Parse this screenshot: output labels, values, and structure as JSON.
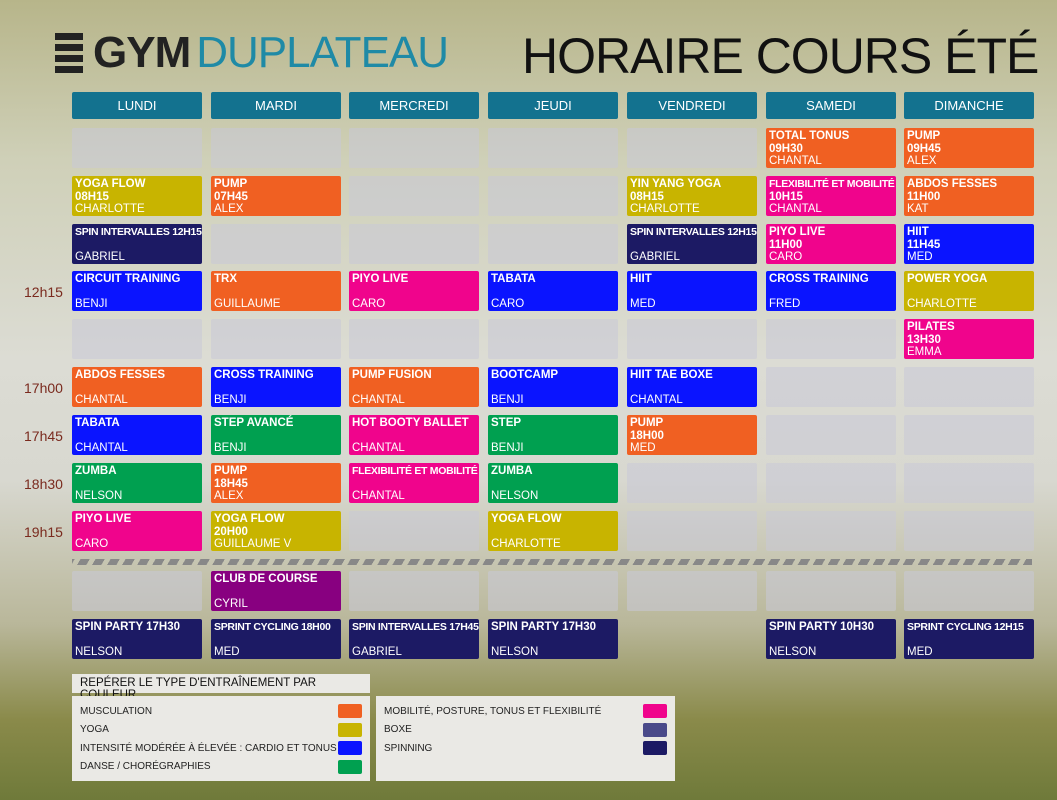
{
  "header": {
    "brand_bold": "GYM",
    "brand_light": "DUPLATEAU",
    "title": "HORAIRE COURS ÉTÉ"
  },
  "days": [
    "LUNDI",
    "MARDI",
    "MERCREDI",
    "JEUDI",
    "VENDREDI",
    "SAMEDI",
    "DIMANCHE"
  ],
  "colors": {
    "musculation": "#f06022",
    "yoga": "#c8b400",
    "cardio": "#0a14ff",
    "danse": "#00a050",
    "mobilite": "#f0048c",
    "boxe": "#4a4a8a",
    "spinning": "#1c1a64",
    "course": "#880080",
    "header": "#13728f"
  },
  "rows": [
    {
      "time": "",
      "cells": [
        null,
        null,
        null,
        null,
        null,
        {
          "name": "TOTAL TONUS",
          "time": "09H30",
          "instructor": "CHANTAL",
          "type": "musculation"
        },
        {
          "name": "PUMP",
          "time": "09H45",
          "instructor": "ALEX",
          "type": "musculation"
        }
      ]
    },
    {
      "time": "",
      "cells": [
        {
          "name": "YOGA FLOW",
          "time": "08H15",
          "instructor": "CHARLOTTE",
          "type": "yoga"
        },
        {
          "name": "PUMP",
          "time": "07H45",
          "instructor": "ALEX",
          "type": "musculation"
        },
        null,
        null,
        {
          "name": "YIN YANG YOGA",
          "time": "08H15",
          "instructor": "CHARLOTTE",
          "type": "yoga"
        },
        {
          "name": "FLEXIBILITÉ ET MOBILITÉ",
          "time": "10H15",
          "instructor": "CHANTAL",
          "type": "mobilite"
        },
        {
          "name": "ABDOS FESSES",
          "time": "11H00",
          "instructor": "KAT",
          "type": "musculation"
        }
      ]
    },
    {
      "time": "",
      "cells": [
        {
          "name": "SPIN INTERVALLES 12H15",
          "time": "",
          "instructor": "GABRIEL",
          "type": "spinning"
        },
        null,
        null,
        null,
        {
          "name": "SPIN INTERVALLES 12H15",
          "time": "",
          "instructor": "GABRIEL",
          "type": "spinning"
        },
        {
          "name": "PIYO LIVE",
          "time": "11H00",
          "instructor": "CARO",
          "type": "mobilite"
        },
        {
          "name": "HIIT",
          "time": "11H45",
          "instructor": "MED",
          "type": "cardio"
        }
      ]
    },
    {
      "time": "12h15",
      "cells": [
        {
          "name": "CIRCUIT TRAINING",
          "time": "",
          "instructor": "BENJI",
          "type": "cardio"
        },
        {
          "name": "TRX",
          "time": "",
          "instructor": "GUILLAUME",
          "type": "musculation"
        },
        {
          "name": "PIYO LIVE",
          "time": "",
          "instructor": "CARO",
          "type": "mobilite"
        },
        {
          "name": "TABATA",
          "time": "",
          "instructor": "CARO",
          "type": "cardio"
        },
        {
          "name": "HIIT",
          "time": "",
          "instructor": "MED",
          "type": "cardio"
        },
        {
          "name": "CROSS TRAINING",
          "time": "",
          "instructor": "FRED",
          "type": "cardio"
        },
        {
          "name": "POWER YOGA",
          "time": "",
          "instructor": "CHARLOTTE",
          "type": "yoga"
        }
      ]
    },
    {
      "time": "",
      "cells": [
        null,
        null,
        null,
        null,
        null,
        null,
        {
          "name": "PILATES",
          "time": "13H30",
          "instructor": "EMMA",
          "type": "mobilite"
        }
      ]
    },
    {
      "time": "17h00",
      "cells": [
        {
          "name": "ABDOS FESSES",
          "time": "",
          "instructor": "CHANTAL",
          "type": "musculation"
        },
        {
          "name": "CROSS TRAINING",
          "time": "",
          "instructor": "BENJI",
          "type": "cardio"
        },
        {
          "name": "PUMP FUSION",
          "time": "",
          "instructor": "CHANTAL",
          "type": "musculation"
        },
        {
          "name": "BOOTCAMP",
          "time": "",
          "instructor": "BENJI",
          "type": "cardio"
        },
        {
          "name": "HIIT TAE BOXE",
          "time": "",
          "instructor": "CHANTAL",
          "type": "cardio"
        },
        null,
        null
      ]
    },
    {
      "time": "17h45",
      "cells": [
        {
          "name": "TABATA",
          "time": "",
          "instructor": "CHANTAL",
          "type": "cardio"
        },
        {
          "name": "STEP AVANCÉ",
          "time": "",
          "instructor": "BENJI",
          "type": "danse"
        },
        {
          "name": "HOT BOOTY BALLET",
          "time": "",
          "instructor": "CHANTAL",
          "type": "mobilite"
        },
        {
          "name": "STEP",
          "time": "",
          "instructor": "BENJI",
          "type": "danse"
        },
        {
          "name": "PUMP",
          "time": "18H00",
          "instructor": "MED",
          "type": "musculation"
        },
        null,
        null
      ]
    },
    {
      "time": "18h30",
      "cells": [
        {
          "name": "ZUMBA",
          "time": "",
          "instructor": "NELSON",
          "type": "danse"
        },
        {
          "name": "PUMP",
          "time": "18H45",
          "instructor": "ALEX",
          "type": "musculation"
        },
        {
          "name": "FLEXIBILITÉ ET MOBILITÉ",
          "time": "",
          "instructor": "CHANTAL",
          "type": "mobilite"
        },
        {
          "name": "ZUMBA",
          "time": "",
          "instructor": "NELSON",
          "type": "danse"
        },
        null,
        null,
        null
      ]
    },
    {
      "time": "19h15",
      "cells": [
        {
          "name": "PIYO LIVE",
          "time": "",
          "instructor": "CARO",
          "type": "mobilite"
        },
        {
          "name": "YOGA FLOW",
          "time": "20H00",
          "instructor": "GUILLAUME V",
          "type": "yoga"
        },
        null,
        {
          "name": "YOGA FLOW",
          "time": "",
          "instructor": "CHARLOTTE",
          "type": "yoga"
        },
        null,
        null,
        null
      ]
    },
    {
      "time": "",
      "cells": [
        null,
        {
          "name": "CLUB DE COURSE",
          "time": "",
          "instructor": "CYRIL",
          "type": "course"
        },
        null,
        null,
        null,
        null,
        null
      ]
    },
    {
      "time": "",
      "cells": [
        {
          "name": "SPIN PARTY 17H30",
          "time": "",
          "instructor": "NELSON",
          "type": "spinning"
        },
        {
          "name": "SPRINT CYCLING 18H00",
          "time": "",
          "instructor": "MED",
          "type": "spinning"
        },
        {
          "name": "SPIN INTERVALLES 17H45",
          "time": "",
          "instructor": "GABRIEL",
          "type": "spinning"
        },
        {
          "name": "SPIN PARTY 17H30",
          "time": "",
          "instructor": "NELSON",
          "type": "spinning"
        },
        "none",
        {
          "name": "SPIN PARTY 10H30",
          "time": "",
          "instructor": "NELSON",
          "type": "spinning"
        },
        {
          "name": "SPRINT CYCLING 12H15",
          "time": "",
          "instructor": "MED",
          "type": "spinning"
        }
      ]
    }
  ],
  "legend": {
    "title": "REPÉRER LE TYPE D'ENTRAÎNEMENT PAR COULEUR",
    "left": [
      {
        "label": "MUSCULATION",
        "type": "musculation"
      },
      {
        "label": "YOGA",
        "type": "yoga"
      },
      {
        "label": "INTENSITÉ MODÉRÉE À ÉLEVÉE : CARDIO ET TONUS",
        "type": "cardio"
      },
      {
        "label": "DANSE / CHORÉGRAPHIES",
        "type": "danse"
      }
    ],
    "right": [
      {
        "label": "MOBILITÉ, POSTURE, TONUS ET FLEXIBILITÉ",
        "type": "mobilite"
      },
      {
        "label": "BOXE",
        "type": "boxe"
      },
      {
        "label": "SPINNING",
        "type": "spinning"
      }
    ]
  }
}
